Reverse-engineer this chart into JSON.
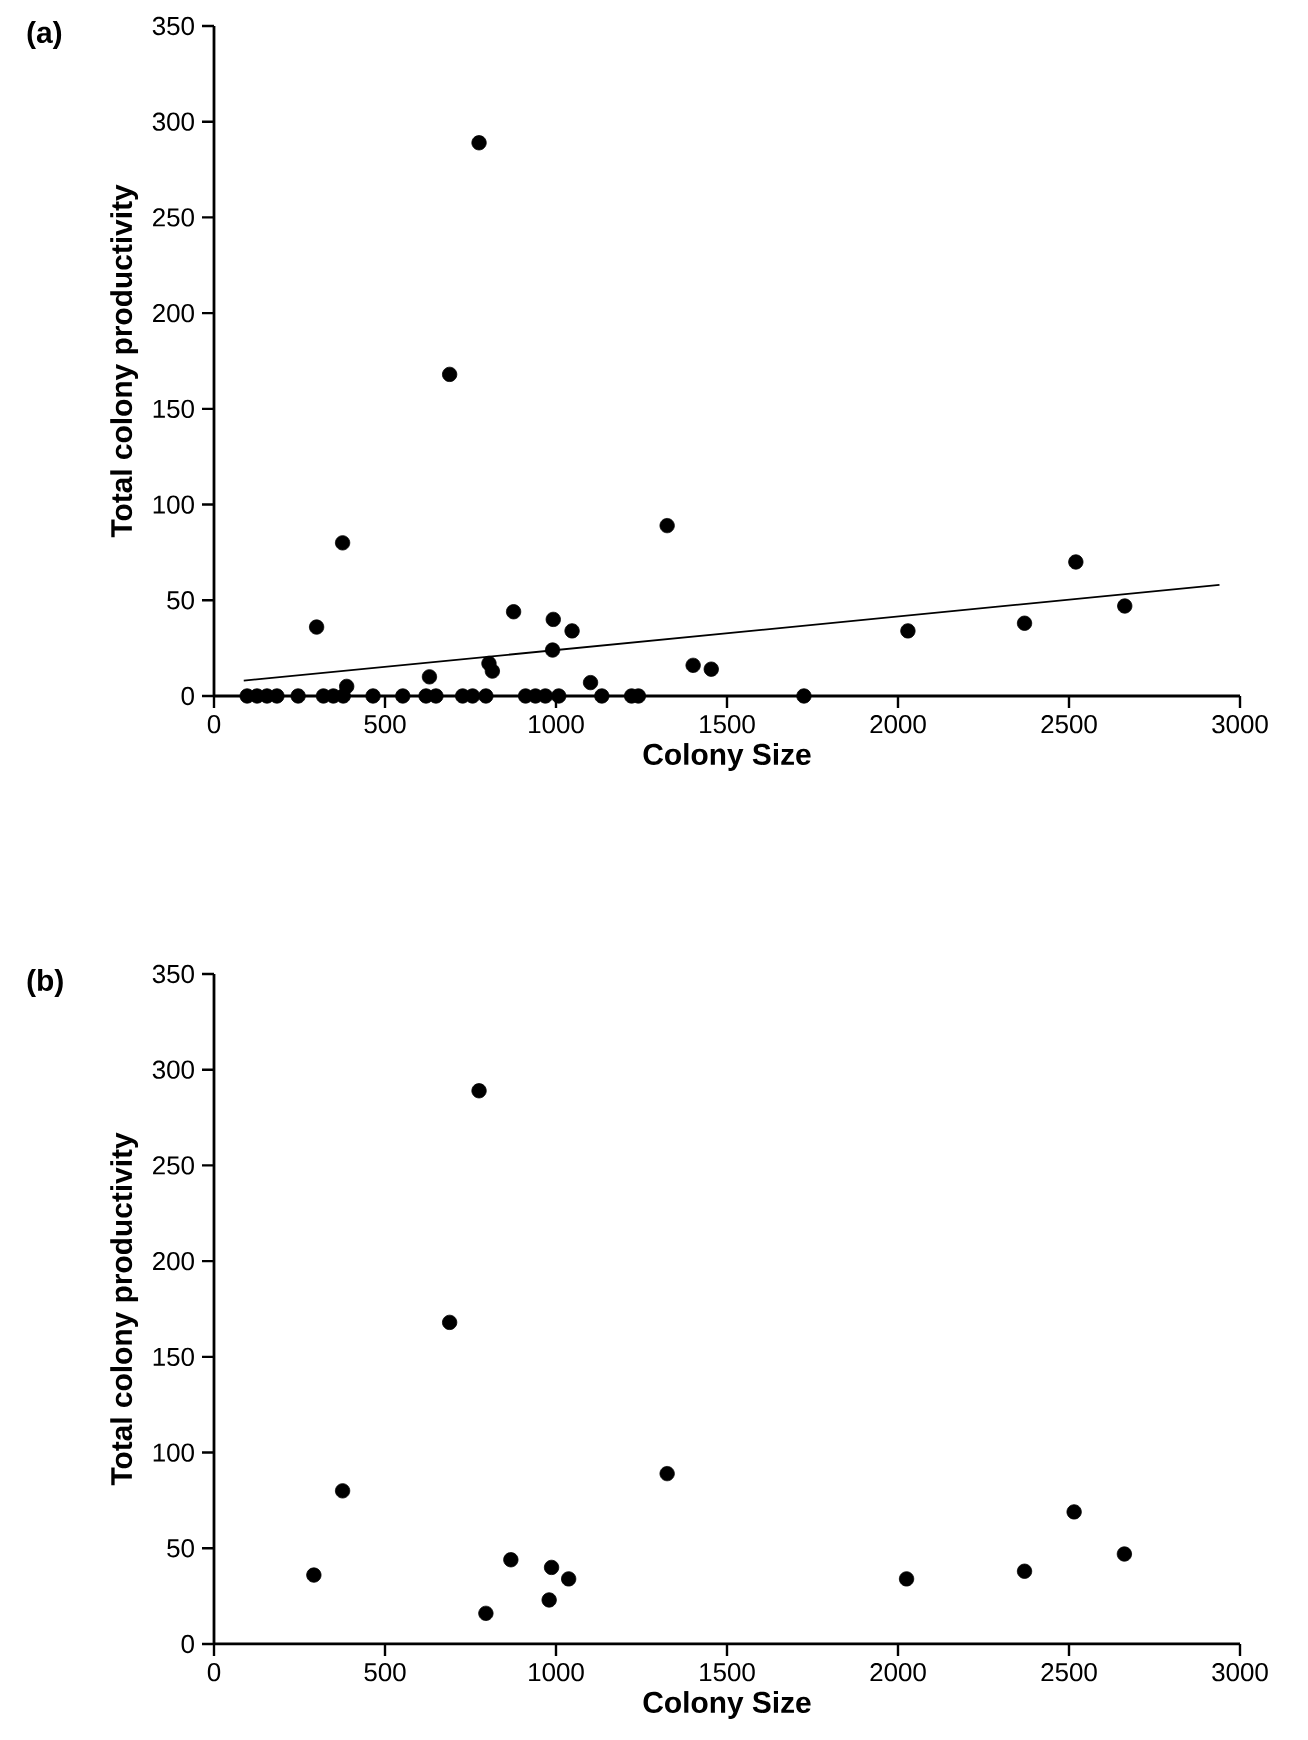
{
  "chart_data": [
    {
      "type": "scatter",
      "title": "(a)",
      "xlabel": "Colony Size",
      "ylabel": "Total colony productivity",
      "xlim": [
        0,
        3000
      ],
      "ylim": [
        0,
        350
      ],
      "xticks": [
        0,
        500,
        1000,
        1500,
        2000,
        2500,
        3000
      ],
      "yticks": [
        0,
        50,
        100,
        150,
        200,
        250,
        300,
        350
      ],
      "marker": "circle",
      "grid": false,
      "series": [
        {
          "color": "#000000",
          "x": [
            97,
            126,
            155,
            184,
            246,
            320,
            349,
            378,
            465,
            552,
            620,
            649,
            727,
            756,
            795,
            911,
            940,
            969,
            1008,
            1134,
            1221,
            1241,
            1725,
            300,
            388,
            630,
            804,
            814,
            876,
            990,
            992,
            1047,
            1101,
            1401,
            1454,
            2029,
            2370,
            2520,
            2663,
            1325,
            689,
            775,
            376
          ],
          "values": [
            0,
            0,
            0,
            0,
            0,
            0,
            0,
            0,
            0,
            0,
            0,
            0,
            0,
            0,
            0,
            0,
            0,
            0,
            0,
            0,
            0,
            0,
            0,
            36,
            5,
            10,
            17,
            13,
            44,
            24,
            40,
            34,
            7,
            16,
            14,
            34,
            38,
            70,
            47,
            89,
            168,
            289,
            80
          ]
        },
        {
          "type": "line",
          "marker": "none",
          "color": "#000000",
          "x": [
            87,
            2940
          ],
          "values": [
            8,
            58
          ]
        }
      ]
    },
    {
      "type": "scatter",
      "title": "(b)",
      "xlabel": "Colony Size",
      "ylabel": "Total colony productivity",
      "xlim": [
        0,
        3000
      ],
      "ylim": [
        0,
        350
      ],
      "xticks": [
        0,
        500,
        1000,
        1500,
        2000,
        2500,
        3000
      ],
      "yticks": [
        0,
        50,
        100,
        150,
        200,
        250,
        300,
        350
      ],
      "marker": "circle",
      "grid": false,
      "series": [
        {
          "color": "#000000",
          "x": [
            292,
            376,
            689,
            775,
            795,
            868,
            980,
            987,
            1037,
            1325,
            2025,
            2370,
            2515,
            2662
          ],
          "values": [
            36,
            80,
            168,
            289,
            16,
            44,
            23,
            40,
            34,
            89,
            34,
            38,
            69,
            47
          ]
        }
      ]
    }
  ]
}
